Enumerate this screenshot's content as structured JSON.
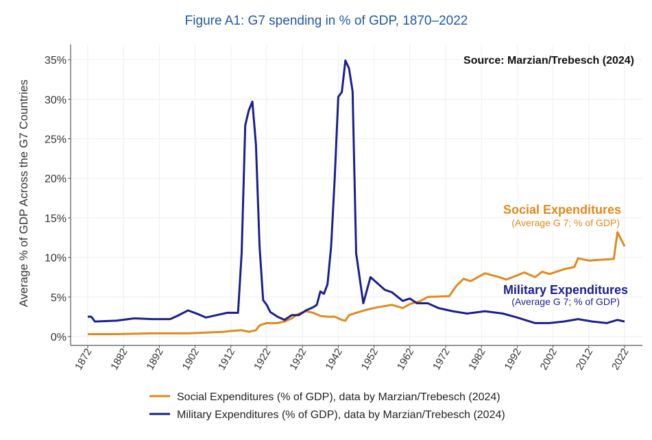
{
  "chart_data": {
    "type": "line",
    "title": "Figure A1: G7 spending in % of GDP, 1870–2022",
    "source": "Source: Marzian/Trebesch (2024)",
    "xlabel": "",
    "ylabel": "Average % of GDP Across the G7 Countries",
    "xlim": [
      1870,
      2024
    ],
    "ylim": [
      0,
      36
    ],
    "x_ticks": [
      "1872",
      "1882",
      "1892",
      "1902",
      "1912",
      "1922",
      "1932",
      "1942",
      "1952",
      "1962",
      "1972",
      "1982",
      "1992",
      "2002",
      "2012",
      "2022"
    ],
    "y_ticks": [
      0,
      5,
      10,
      15,
      20,
      25,
      30,
      35
    ],
    "y_tick_labels": [
      "0%",
      "5%",
      "10%",
      "15%",
      "20%",
      "25%",
      "30%",
      "35%"
    ],
    "grid": true,
    "legend_position": "bottom",
    "annotations": {
      "social_title": "Social Expenditures",
      "social_sub": "(Average G 7; % of GDP)",
      "military_title": "Military Expenditures",
      "military_sub": "(Average G 7; % of GDP)"
    },
    "series": [
      {
        "name": "Social Expenditures (% of GDP), data by Marzian/Trebesch (2024)",
        "color": "#e0891c",
        "x": [
          1872,
          1880,
          1890,
          1900,
          1910,
          1912,
          1915,
          1917,
          1919,
          1920,
          1922,
          1925,
          1927,
          1929,
          1931,
          1933,
          1935,
          1937,
          1939,
          1941,
          1943,
          1944,
          1945,
          1947,
          1950,
          1953,
          1957,
          1960,
          1962,
          1965,
          1967,
          1973,
          1975,
          1977,
          1979,
          1983,
          1987,
          1989,
          1994,
          1997,
          1999,
          2001,
          2005,
          2008,
          2009,
          2012,
          2015,
          2019,
          2020,
          2022
        ],
        "y": [
          0.3,
          0.3,
          0.4,
          0.4,
          0.6,
          0.7,
          0.8,
          0.6,
          0.8,
          1.4,
          1.7,
          1.7,
          1.9,
          2.3,
          2.9,
          3.2,
          3.0,
          2.6,
          2.5,
          2.5,
          2.1,
          2.0,
          2.7,
          3.0,
          3.4,
          3.7,
          4.0,
          3.6,
          4.1,
          4.5,
          5.0,
          5.1,
          6.4,
          7.3,
          7.0,
          8.0,
          7.5,
          7.2,
          8.1,
          7.5,
          8.2,
          7.9,
          8.5,
          8.8,
          9.9,
          9.6,
          9.7,
          9.8,
          13.2,
          11.4
        ]
      },
      {
        "name": "Military Expenditures (% of GDP), data by Marzian/Trebesch (2024)",
        "color": "#1a1f8c",
        "x": [
          1872,
          1873,
          1874,
          1880,
          1885,
          1890,
          1895,
          1897,
          1900,
          1903,
          1905,
          1908,
          1911,
          1914,
          1915,
          1916,
          1917,
          1918,
          1919,
          1920,
          1921,
          1922,
          1923,
          1925,
          1927,
          1929,
          1931,
          1933,
          1935,
          1936,
          1937,
          1938,
          1939,
          1940,
          1941,
          1942,
          1943,
          1944,
          1945,
          1946,
          1947,
          1949,
          1951,
          1955,
          1957,
          1960,
          1962,
          1964,
          1967,
          1970,
          1974,
          1978,
          1983,
          1988,
          1992,
          1997,
          2001,
          2005,
          2009,
          2013,
          2017,
          2020,
          2022
        ],
        "y": [
          2.5,
          2.5,
          1.9,
          2.0,
          2.3,
          2.2,
          2.2,
          2.6,
          3.3,
          2.8,
          2.4,
          2.7,
          3.0,
          3.0,
          10.6,
          26.7,
          28.6,
          29.7,
          24.3,
          11.4,
          4.6,
          4.0,
          3.1,
          2.5,
          2.1,
          2.7,
          2.7,
          3.3,
          3.7,
          4.0,
          5.7,
          5.4,
          6.6,
          11.4,
          20.0,
          30.3,
          30.9,
          34.9,
          33.9,
          31.0,
          10.5,
          4.2,
          7.5,
          5.9,
          5.6,
          4.5,
          4.8,
          4.2,
          4.2,
          3.6,
          3.2,
          2.9,
          3.2,
          2.9,
          2.4,
          1.7,
          1.7,
          1.9,
          2.2,
          1.9,
          1.7,
          2.1,
          1.9
        ]
      }
    ]
  }
}
